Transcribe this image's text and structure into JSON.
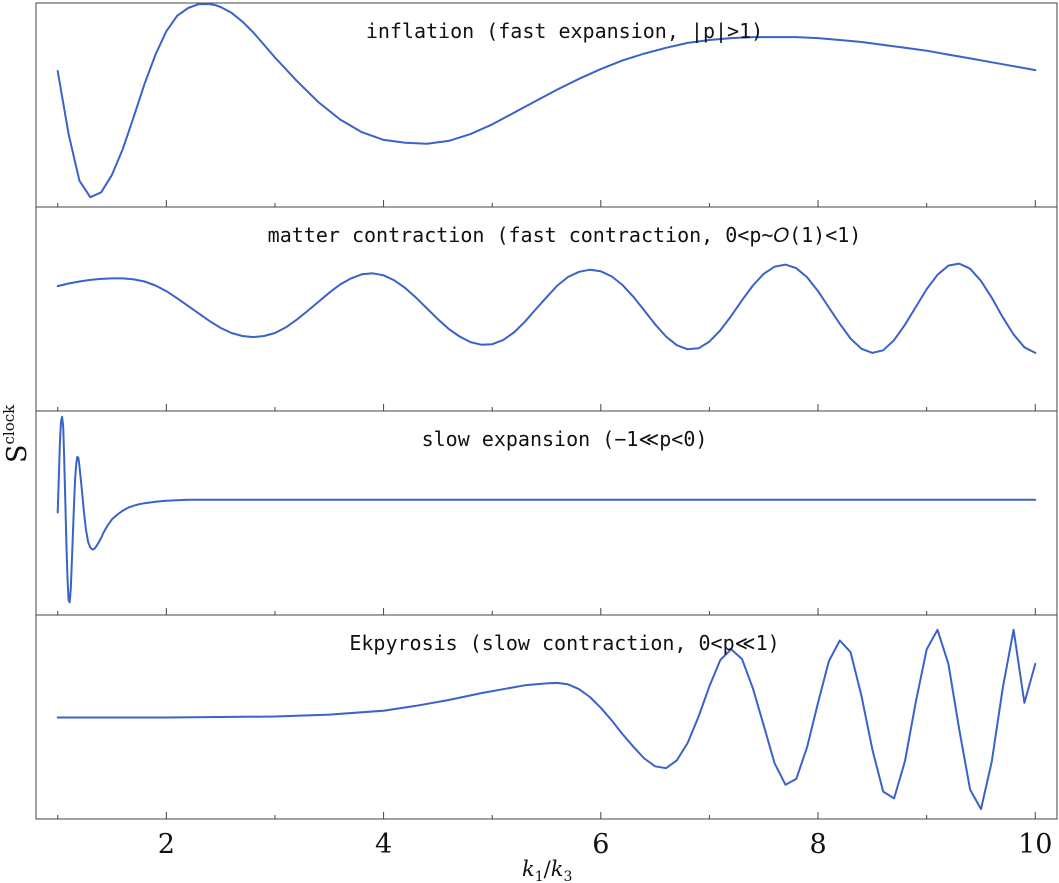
{
  "chart_data": {
    "type": "line",
    "xlabel": "k1/k3",
    "xlabel_parts": {
      "k": "k",
      "sub1": "1",
      "slash": "/",
      "sub3": "3"
    },
    "ylabel": "S^clock",
    "ylabel_parts": {
      "base": "S",
      "sup": "clock"
    },
    "xlim": [
      0.8,
      10.2
    ],
    "xticks": [
      2,
      4,
      6,
      8,
      10
    ],
    "minor_xticks": [
      1,
      3,
      5,
      7,
      9
    ],
    "grid": false,
    "line_color": "#3a62c8",
    "panels": [
      {
        "title": "inflation (fast expansion, |p|>1)",
        "ylim": [
          -1,
          1
        ],
        "series": [
          {
            "x": [
              1.0,
              1.1,
              1.2,
              1.3,
              1.4,
              1.5,
              1.6,
              1.7,
              1.8,
              1.9,
              2.0,
              2.1,
              2.2,
              2.3,
              2.4,
              2.45,
              2.5,
              2.6,
              2.7,
              2.8,
              2.9,
              3.0,
              3.2,
              3.4,
              3.6,
              3.8,
              4.0,
              4.2,
              4.4,
              4.6,
              4.8,
              5.0,
              5.2,
              5.4,
              5.6,
              5.8,
              6.0,
              6.2,
              6.4,
              6.6,
              6.8,
              7.0,
              7.2,
              7.4,
              7.6,
              7.8,
              8.0,
              8.2,
              8.4,
              8.6,
              8.8,
              9.0,
              9.2,
              9.4,
              9.6,
              9.8,
              10.0
            ],
            "y": [
              0.35,
              -0.3,
              -0.78,
              -0.95,
              -0.9,
              -0.72,
              -0.45,
              -0.12,
              0.22,
              0.52,
              0.76,
              0.92,
              1.0,
              1.04,
              1.04,
              1.03,
              1.01,
              0.95,
              0.86,
              0.75,
              0.62,
              0.49,
              0.25,
              0.03,
              -0.15,
              -0.28,
              -0.36,
              -0.39,
              -0.4,
              -0.37,
              -0.3,
              -0.2,
              -0.08,
              0.04,
              0.16,
              0.27,
              0.37,
              0.46,
              0.53,
              0.59,
              0.64,
              0.67,
              0.69,
              0.7,
              0.7,
              0.7,
              0.69,
              0.67,
              0.65,
              0.62,
              0.59,
              0.56,
              0.52,
              0.48,
              0.44,
              0.4,
              0.36
            ]
          }
        ]
      },
      {
        "title": "matter contraction (fast contraction, 0<p~𝑂(1)<1)",
        "ylim": [
          -1,
          1
        ],
        "series": [
          {
            "x": [
              1.0,
              1.1,
              1.2,
              1.3,
              1.4,
              1.5,
              1.6,
              1.7,
              1.8,
              1.9,
              2.0,
              2.1,
              2.2,
              2.3,
              2.4,
              2.5,
              2.6,
              2.7,
              2.8,
              2.9,
              3.0,
              3.1,
              3.2,
              3.3,
              3.4,
              3.5,
              3.6,
              3.7,
              3.8,
              3.9,
              4.0,
              4.1,
              4.2,
              4.3,
              4.4,
              4.5,
              4.6,
              4.7,
              4.8,
              4.9,
              5.0,
              5.1,
              5.2,
              5.3,
              5.4,
              5.5,
              5.6,
              5.7,
              5.8,
              5.9,
              6.0,
              6.1,
              6.2,
              6.3,
              6.4,
              6.5,
              6.6,
              6.7,
              6.8,
              6.9,
              7.0,
              7.1,
              7.2,
              7.3,
              7.4,
              7.5,
              7.6,
              7.7,
              7.8,
              7.9,
              8.0,
              8.1,
              8.2,
              8.3,
              8.4,
              8.5,
              8.6,
              8.7,
              8.8,
              8.9,
              9.0,
              9.1,
              9.2,
              9.3,
              9.4,
              9.5,
              9.6,
              9.7,
              9.8,
              9.9,
              10.0
            ],
            "y": [
              0.45,
              0.5,
              0.54,
              0.57,
              0.59,
              0.6,
              0.6,
              0.58,
              0.54,
              0.46,
              0.35,
              0.21,
              0.06,
              -0.09,
              -0.24,
              -0.37,
              -0.47,
              -0.53,
              -0.55,
              -0.53,
              -0.47,
              -0.36,
              -0.21,
              -0.04,
              0.14,
              0.32,
              0.48,
              0.6,
              0.68,
              0.7,
              0.66,
              0.56,
              0.41,
              0.22,
              0.01,
              -0.2,
              -0.39,
              -0.54,
              -0.65,
              -0.7,
              -0.69,
              -0.61,
              -0.46,
              -0.25,
              -0.01,
              0.23,
              0.46,
              0.63,
              0.73,
              0.77,
              0.74,
              0.64,
              0.47,
              0.24,
              -0.03,
              -0.3,
              -0.54,
              -0.71,
              -0.79,
              -0.77,
              -0.64,
              -0.42,
              -0.14,
              0.17,
              0.46,
              0.69,
              0.83,
              0.87,
              0.8,
              0.62,
              0.35,
              0.03,
              -0.29,
              -0.58,
              -0.78,
              -0.86,
              -0.81,
              -0.61,
              -0.31,
              0.04,
              0.39,
              0.67,
              0.85,
              0.89,
              0.79,
              0.55,
              0.22,
              -0.16,
              -0.5,
              -0.75,
              -0.86
            ]
          }
        ]
      },
      {
        "title": "slow expansion (−1≪p<0)",
        "ylim": [
          -1,
          1
        ],
        "series": [
          {
            "x": [
              1.0,
              1.01,
              1.02,
              1.03,
              1.04,
              1.05,
              1.06,
              1.07,
              1.08,
              1.09,
              1.1,
              1.11,
              1.12,
              1.13,
              1.14,
              1.15,
              1.16,
              1.17,
              1.18,
              1.19,
              1.2,
              1.22,
              1.24,
              1.26,
              1.28,
              1.3,
              1.32,
              1.34,
              1.36,
              1.38,
              1.4,
              1.42,
              1.44,
              1.46,
              1.48,
              1.5,
              1.55,
              1.6,
              1.65,
              1.7,
              1.75,
              1.8,
              1.9,
              2.0,
              2.1,
              2.2,
              2.4,
              2.6,
              2.8,
              3.0,
              3.5,
              4.0,
              5.0,
              6.0,
              7.0,
              8.0,
              9.0,
              10.0
            ],
            "y": [
              0.0,
              0.35,
              0.72,
              0.93,
              0.98,
              0.88,
              0.55,
              0.12,
              -0.32,
              -0.68,
              -0.9,
              -0.92,
              -0.78,
              -0.52,
              -0.22,
              0.08,
              0.34,
              0.5,
              0.57,
              0.56,
              0.48,
              0.26,
              0.02,
              -0.18,
              -0.3,
              -0.36,
              -0.38,
              -0.37,
              -0.34,
              -0.3,
              -0.26,
              -0.21,
              -0.17,
              -0.13,
              -0.1,
              -0.07,
              -0.02,
              0.02,
              0.05,
              0.07,
              0.085,
              0.095,
              0.11,
              0.12,
              0.125,
              0.13,
              0.13,
              0.13,
              0.13,
              0.13,
              0.13,
              0.13,
              0.13,
              0.13,
              0.13,
              0.13,
              0.13,
              0.13
            ]
          }
        ]
      },
      {
        "title": "Ekpyrosis (slow contraction, 0<p≪1)",
        "ylim": [
          -1,
          1
        ],
        "series": [
          {
            "x": [
              1.0,
              1.5,
              2.0,
              2.5,
              3.0,
              3.5,
              4.0,
              4.3,
              4.6,
              4.9,
              5.1,
              5.3,
              5.5,
              5.6,
              5.7,
              5.8,
              5.9,
              6.0,
              6.1,
              6.2,
              6.3,
              6.4,
              6.5,
              6.6,
              6.7,
              6.8,
              6.9,
              7.0,
              7.1,
              7.2,
              7.3,
              7.4,
              7.5,
              7.6,
              7.7,
              7.8,
              7.9,
              8.0,
              8.1,
              8.2,
              8.3,
              8.4,
              8.5,
              8.6,
              8.7,
              8.8,
              8.9,
              9.0,
              9.1,
              9.2,
              9.3,
              9.4,
              9.5,
              9.6,
              9.7,
              9.8,
              9.9,
              10.0
            ],
            "y": [
              0.0,
              0.0,
              0.0,
              0.005,
              0.01,
              0.03,
              0.07,
              0.12,
              0.18,
              0.25,
              0.29,
              0.33,
              0.35,
              0.355,
              0.34,
              0.29,
              0.21,
              0.1,
              -0.03,
              -0.17,
              -0.3,
              -0.42,
              -0.5,
              -0.52,
              -0.44,
              -0.26,
              0.01,
              0.32,
              0.59,
              0.7,
              0.6,
              0.3,
              -0.08,
              -0.47,
              -0.69,
              -0.63,
              -0.3,
              0.15,
              0.58,
              0.79,
              0.67,
              0.22,
              -0.33,
              -0.76,
              -0.83,
              -0.45,
              0.16,
              0.7,
              0.9,
              0.55,
              -0.12,
              -0.74,
              -0.94,
              -0.45,
              0.3,
              0.9,
              0.15,
              0.55
            ]
          }
        ]
      }
    ]
  }
}
